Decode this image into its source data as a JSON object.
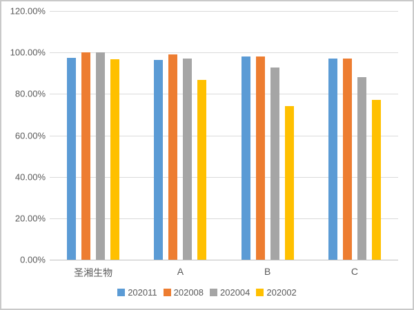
{
  "chart_data": {
    "type": "bar",
    "title": "",
    "xlabel": "",
    "ylabel": "",
    "categories": [
      "圣湘生物",
      "A",
      "B",
      "C"
    ],
    "series": [
      {
        "name": "202011",
        "color": "#5B9BD5",
        "values": [
          97.3,
          96.3,
          98.0,
          97.0
        ]
      },
      {
        "name": "202008",
        "color": "#ED7D31",
        "values": [
          100.0,
          99.0,
          98.0,
          97.0
        ]
      },
      {
        "name": "202004",
        "color": "#A5A5A5",
        "values": [
          100.0,
          97.2,
          92.9,
          88.2
        ]
      },
      {
        "name": "202002",
        "color": "#FFC000",
        "values": [
          96.7,
          86.6,
          74.2,
          77.0
        ]
      }
    ],
    "ylim": [
      0,
      120
    ],
    "yticks": [
      {
        "label": "0.00%",
        "value": 0
      },
      {
        "label": "20.00%",
        "value": 20
      },
      {
        "label": "40.00%",
        "value": 40
      },
      {
        "label": "60.00%",
        "value": 60
      },
      {
        "label": "80.00%",
        "value": 80
      },
      {
        "label": "100.00%",
        "value": 100
      },
      {
        "label": "120.00%",
        "value": 120
      }
    ],
    "grid": true,
    "legend_position": "bottom"
  },
  "colors": {
    "background": "#FFFFFF",
    "frame_border": "#C9C9C9",
    "gridline": "#D9D9D9",
    "axis_line": "#BFBFBF",
    "text": "#595959"
  }
}
